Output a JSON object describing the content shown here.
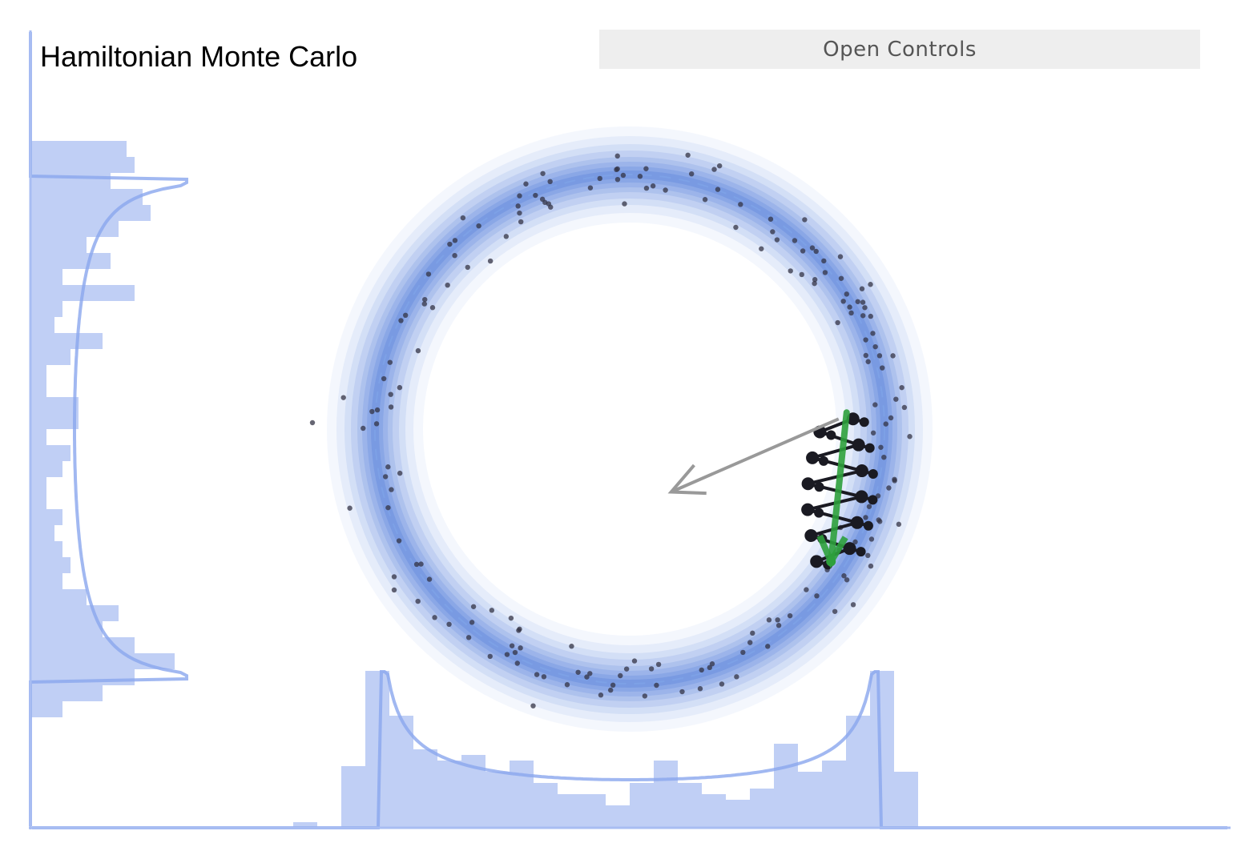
{
  "title": "Hamiltonian Monte Carlo",
  "controls": {
    "open_label": "Open Controls"
  },
  "colors": {
    "density": "#3f6fd8",
    "histogram": "#c0cff5",
    "marginal_curve": "#8aa6ee",
    "axis": "#a8bdf2",
    "sample": "#333344",
    "trajectory": "#1a1a22",
    "momentum_arrow": "#999999",
    "proposal_arrow": "#2ea03c"
  },
  "target_density": {
    "shape": "ring",
    "radius": 1.0,
    "width": 0.1
  },
  "state": {
    "current_sample": [
      0.82,
      0.04
    ],
    "proposal_sample": [
      0.79,
      -0.52
    ],
    "momentum": [
      -0.55,
      -0.24
    ]
  }
}
